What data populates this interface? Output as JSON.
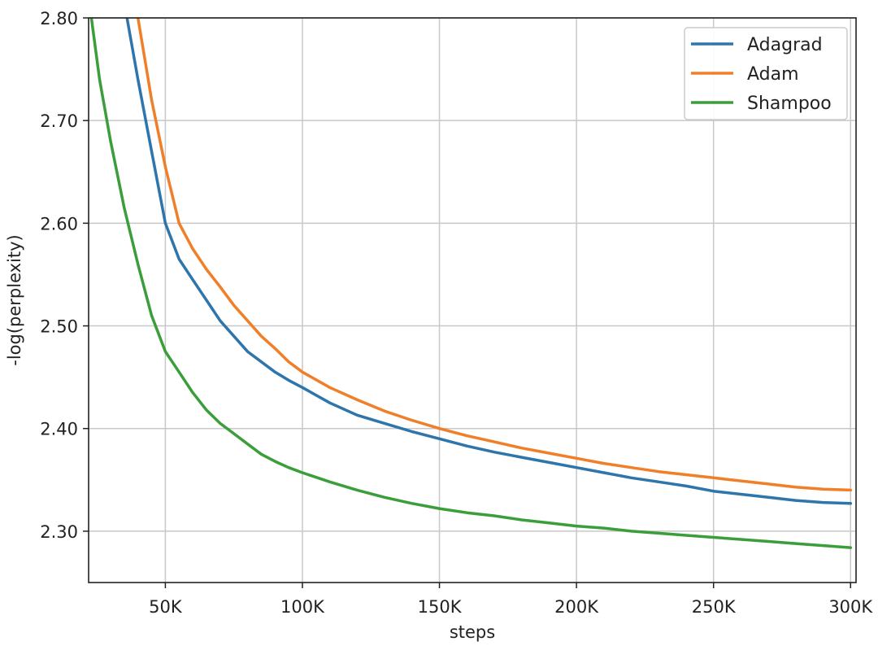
{
  "chart_data": {
    "type": "line",
    "title": "",
    "xlabel": "steps",
    "ylabel": "-log(perplexity)",
    "xlim": [
      22000,
      302000
    ],
    "ylim": [
      2.25,
      2.8
    ],
    "grid": true,
    "legend_position": "top-right",
    "x_ticks": [
      {
        "value": 50000,
        "label": "50K"
      },
      {
        "value": 100000,
        "label": "100K"
      },
      {
        "value": 150000,
        "label": "150K"
      },
      {
        "value": 200000,
        "label": "200K"
      },
      {
        "value": 250000,
        "label": "250K"
      },
      {
        "value": 300000,
        "label": "300K"
      }
    ],
    "y_ticks": [
      {
        "value": 2.3,
        "label": "2.30"
      },
      {
        "value": 2.4,
        "label": "2.40"
      },
      {
        "value": 2.5,
        "label": "2.50"
      },
      {
        "value": 2.6,
        "label": "2.60"
      },
      {
        "value": 2.7,
        "label": "2.70"
      },
      {
        "value": 2.8,
        "label": "2.80"
      }
    ],
    "series": [
      {
        "name": "Adagrad",
        "color": "#2e75ab",
        "x": [
          36000,
          40000,
          45000,
          50000,
          55000,
          60000,
          65000,
          70000,
          75000,
          80000,
          85000,
          90000,
          95000,
          100000,
          110000,
          120000,
          130000,
          140000,
          150000,
          160000,
          170000,
          180000,
          190000,
          200000,
          210000,
          220000,
          230000,
          240000,
          250000,
          260000,
          270000,
          280000,
          290000,
          300000
        ],
        "y": [
          2.8,
          2.74,
          2.67,
          2.6,
          2.565,
          2.545,
          2.525,
          2.505,
          2.49,
          2.475,
          2.465,
          2.455,
          2.447,
          2.44,
          2.425,
          2.413,
          2.405,
          2.397,
          2.39,
          2.383,
          2.377,
          2.372,
          2.367,
          2.362,
          2.357,
          2.352,
          2.348,
          2.344,
          2.339,
          2.336,
          2.333,
          2.33,
          2.328,
          2.327
        ]
      },
      {
        "name": "Adam",
        "color": "#f07f2a",
        "x": [
          40000,
          45000,
          50000,
          55000,
          60000,
          65000,
          70000,
          75000,
          80000,
          85000,
          90000,
          95000,
          100000,
          110000,
          120000,
          130000,
          140000,
          150000,
          160000,
          170000,
          180000,
          190000,
          200000,
          210000,
          220000,
          230000,
          240000,
          250000,
          260000,
          270000,
          280000,
          290000,
          300000
        ],
        "y": [
          2.8,
          2.72,
          2.655,
          2.6,
          2.575,
          2.555,
          2.538,
          2.52,
          2.505,
          2.49,
          2.478,
          2.465,
          2.455,
          2.44,
          2.428,
          2.417,
          2.408,
          2.4,
          2.393,
          2.387,
          2.381,
          2.376,
          2.371,
          2.366,
          2.362,
          2.358,
          2.355,
          2.352,
          2.349,
          2.346,
          2.343,
          2.341,
          2.34
        ]
      },
      {
        "name": "Shampoo",
        "color": "#3a9e3a",
        "x": [
          23000,
          26000,
          30000,
          35000,
          40000,
          45000,
          50000,
          55000,
          60000,
          65000,
          70000,
          75000,
          80000,
          85000,
          90000,
          95000,
          100000,
          110000,
          120000,
          130000,
          140000,
          150000,
          160000,
          170000,
          180000,
          190000,
          200000,
          210000,
          220000,
          230000,
          240000,
          250000,
          260000,
          270000,
          280000,
          290000,
          300000
        ],
        "y": [
          2.8,
          2.74,
          2.68,
          2.615,
          2.56,
          2.51,
          2.475,
          2.455,
          2.435,
          2.418,
          2.405,
          2.395,
          2.385,
          2.375,
          2.368,
          2.362,
          2.357,
          2.348,
          2.34,
          2.333,
          2.327,
          2.322,
          2.318,
          2.315,
          2.311,
          2.308,
          2.305,
          2.303,
          2.3,
          2.298,
          2.296,
          2.294,
          2.292,
          2.29,
          2.288,
          2.286,
          2.284
        ]
      }
    ]
  }
}
